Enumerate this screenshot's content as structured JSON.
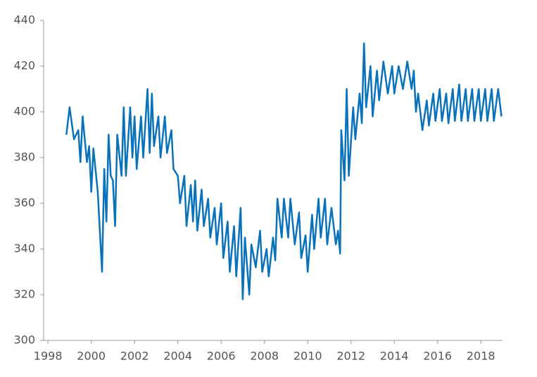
{
  "chart_data": {
    "type": "line",
    "x": [
      1998.85,
      1999.0,
      1999.2,
      1999.4,
      1999.5,
      1999.6,
      1999.8,
      1999.9,
      2000.0,
      2000.1,
      2000.3,
      2000.5,
      2000.6,
      2000.7,
      2000.8,
      2000.9,
      2001.0,
      2001.1,
      2001.2,
      2001.4,
      2001.5,
      2001.6,
      2001.8,
      2001.9,
      2002.0,
      2002.1,
      2002.3,
      2002.4,
      2002.6,
      2002.7,
      2002.8,
      2002.9,
      2003.1,
      2003.2,
      2003.4,
      2003.5,
      2003.7,
      2003.8,
      2004.0,
      2004.1,
      2004.3,
      2004.4,
      2004.6,
      2004.7,
      2004.8,
      2004.9,
      2005.1,
      2005.2,
      2005.4,
      2005.5,
      2005.7,
      2005.8,
      2006.0,
      2006.1,
      2006.3,
      2006.4,
      2006.6,
      2006.7,
      2006.9,
      2007.0,
      2007.1,
      2007.3,
      2007.4,
      2007.6,
      2007.8,
      2007.9,
      2008.1,
      2008.2,
      2008.4,
      2008.5,
      2008.6,
      2008.8,
      2008.9,
      2009.1,
      2009.2,
      2009.4,
      2009.6,
      2009.7,
      2009.9,
      2010.0,
      2010.2,
      2010.3,
      2010.5,
      2010.6,
      2010.8,
      2010.9,
      2011.1,
      2011.3,
      2011.4,
      2011.5,
      2011.55,
      2011.7,
      2011.8,
      2011.9,
      2012.1,
      2012.2,
      2012.4,
      2012.5,
      2012.6,
      2012.7,
      2012.9,
      2013.0,
      2013.2,
      2013.3,
      2013.5,
      2013.7,
      2013.9,
      2014.0,
      2014.2,
      2014.4,
      2014.6,
      2014.8,
      2014.9,
      2015.0,
      2015.1,
      2015.3,
      2015.5,
      2015.6,
      2015.8,
      2015.9,
      2016.1,
      2016.2,
      2016.4,
      2016.5,
      2016.7,
      2016.8,
      2017.0,
      2017.1,
      2017.3,
      2017.4,
      2017.6,
      2017.7,
      2017.9,
      2018.0,
      2018.2,
      2018.3,
      2018.5,
      2018.6,
      2018.8,
      2018.95
    ],
    "series": [
      {
        "color": "#0a72ba",
        "values": [
          390,
          402,
          388,
          392,
          378,
          398,
          378,
          385,
          365,
          384,
          365,
          330,
          375,
          352,
          390,
          372,
          370,
          350,
          390,
          372,
          402,
          372,
          402,
          380,
          398,
          375,
          398,
          380,
          410,
          382,
          408,
          385,
          398,
          380,
          398,
          382,
          392,
          375,
          372,
          360,
          372,
          350,
          368,
          352,
          370,
          348,
          366,
          350,
          362,
          345,
          358,
          342,
          360,
          336,
          352,
          330,
          350,
          328,
          358,
          318,
          345,
          320,
          342,
          332,
          348,
          330,
          340,
          328,
          345,
          335,
          362,
          345,
          362,
          345,
          362,
          342,
          356,
          336,
          346,
          330,
          355,
          340,
          362,
          345,
          362,
          342,
          358,
          342,
          348,
          338,
          392,
          370,
          410,
          372,
          402,
          388,
          408,
          395,
          430,
          402,
          420,
          398,
          418,
          405,
          422,
          408,
          420,
          408,
          420,
          410,
          422,
          410,
          418,
          400,
          408,
          392,
          405,
          394,
          408,
          396,
          410,
          396,
          408,
          395,
          410,
          396,
          412,
          396,
          410,
          396,
          410,
          396,
          410,
          396,
          410,
          396,
          410,
          396,
          410,
          398
        ]
      }
    ],
    "xlim": [
      1997.8,
      2019
    ],
    "xticks": [
      1998,
      2000,
      2002,
      2004,
      2006,
      2008,
      2010,
      2012,
      2014,
      2016,
      2018
    ],
    "ylim": [
      300,
      440
    ],
    "yticks": [
      300,
      320,
      340,
      360,
      380,
      400,
      420,
      440
    ]
  }
}
